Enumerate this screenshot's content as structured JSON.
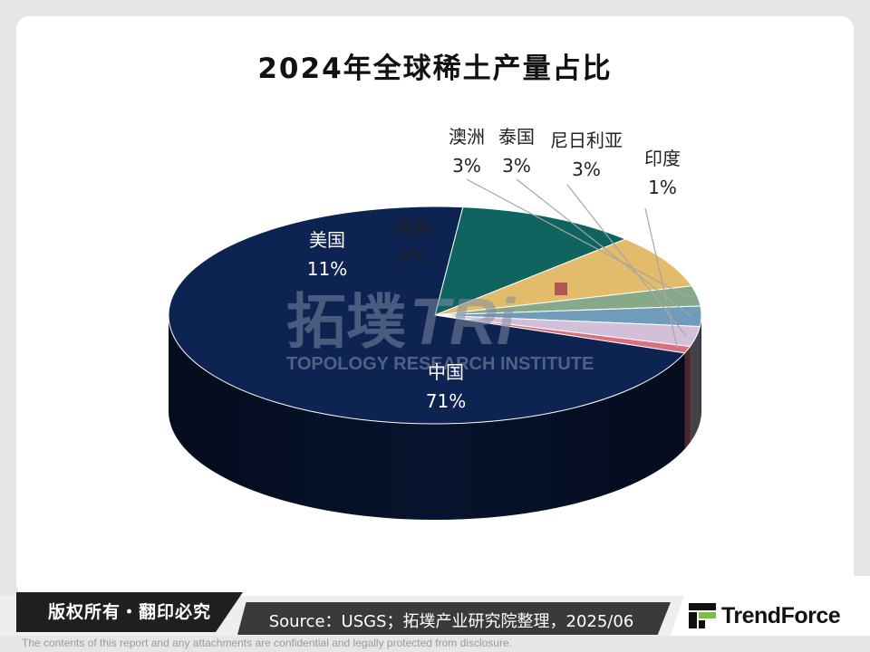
{
  "title": "2024年全球稀土产量占比",
  "chart_data": {
    "type": "pie",
    "title": "2024年全球稀土产量占比",
    "slices": [
      {
        "label": "中国",
        "value": 71,
        "display": "71%",
        "color": "#0d2352"
      },
      {
        "label": "美国",
        "value": 11,
        "display": "11%",
        "color": "#0f6460"
      },
      {
        "label": "缅甸",
        "value": 8,
        "display": "8%",
        "color": "#e2bc6a"
      },
      {
        "label": "澳洲",
        "value": 3,
        "display": "3%",
        "color": "#86a98a"
      },
      {
        "label": "泰国",
        "value": 3,
        "display": "3%",
        "color": "#6f9cbb"
      },
      {
        "label": "尼日利亚",
        "value": 3,
        "display": "3%",
        "color": "#d3bfd8"
      },
      {
        "label": "印度",
        "value": 1,
        "display": "1%",
        "color": "#d9707f"
      }
    ]
  },
  "watermark": {
    "cn": "拓墣",
    "brand": "TRi",
    "en": "TOPOLOGY RESEARCH INSTITUTE"
  },
  "footer": {
    "copyright": "版权所有・翻印必究",
    "source": "Source：USGS；拓墣产业研究院整理，2025/06",
    "logo_text": "TrendForce",
    "disclaimer": "The contents of this report and any attachments are confidential and legally protected from disclosure."
  }
}
